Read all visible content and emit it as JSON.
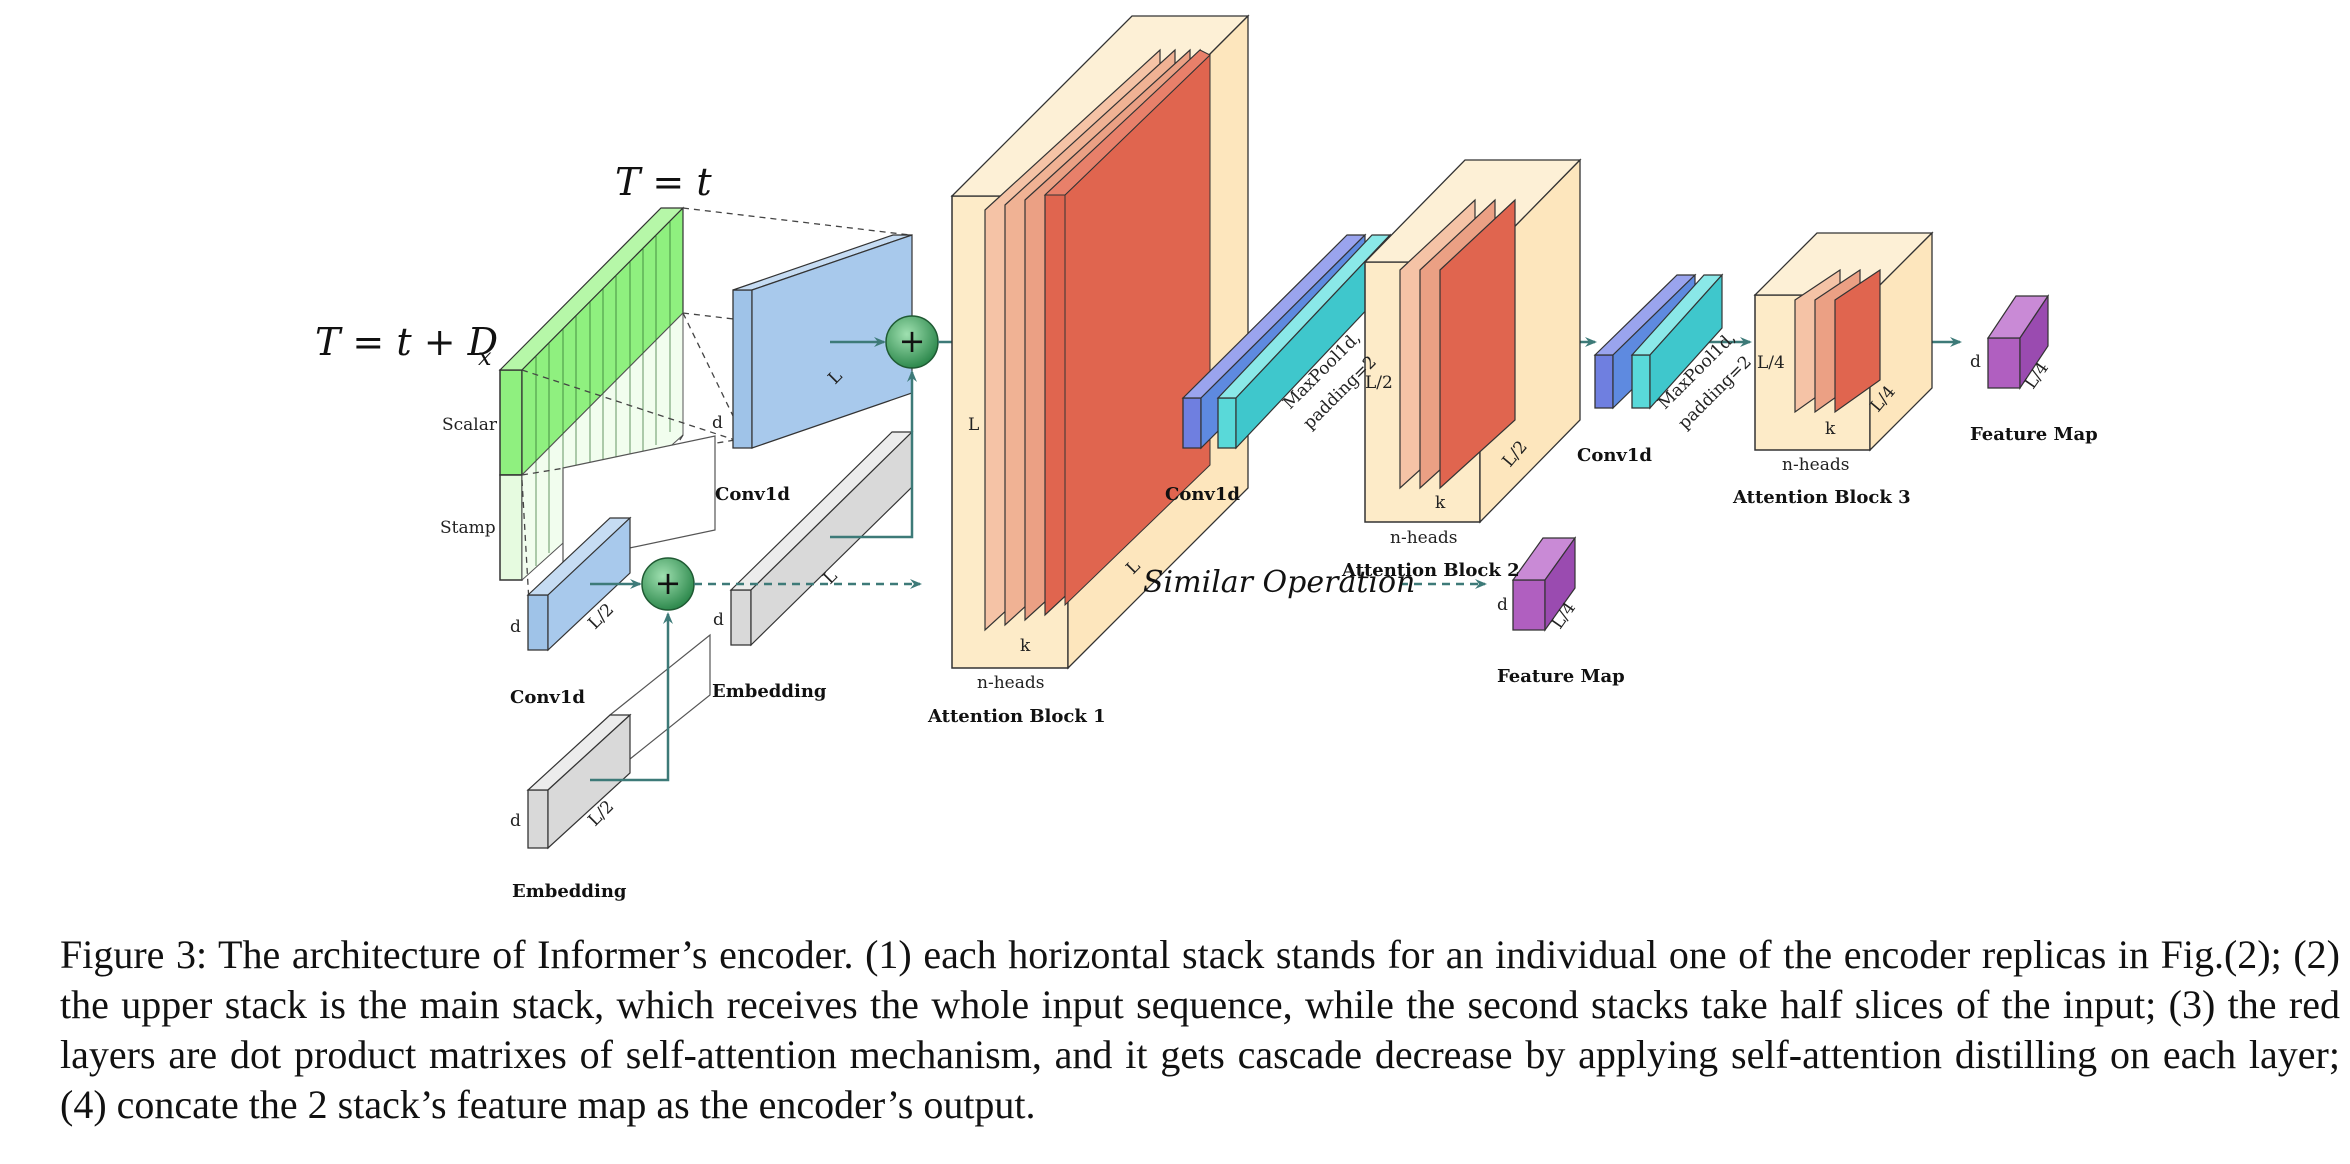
{
  "diagram": {
    "time_labels": {
      "top": "T = t",
      "left": "T = t + D",
      "left_sub": "x"
    },
    "input_labels": {
      "scalar": "Scalar",
      "stamp": "Stamp"
    },
    "dims": {
      "d": "d",
      "L": "L",
      "L2": "L/2",
      "L4": "L/4",
      "k": "k",
      "n_heads": "n-heads"
    },
    "maxpool": {
      "line1": "MaxPool1d,",
      "line2": "padding=2"
    },
    "block_labels": {
      "conv1d": "Conv1d",
      "embedding": "Embedding",
      "attention_block_1": "Attention Block 1",
      "attention_block_2": "Attention Block 2",
      "attention_block_3": "Attention Block 3",
      "feature_map": "Feature Map"
    },
    "similar_operation": "Similar Operation",
    "plus_symbol": "+",
    "colors": {
      "green_input": "#8ff07f",
      "conv_blue": "#9fc3e8",
      "deep_blue": "#6f7fe0",
      "cyan": "#59d9d9",
      "attention_box": "#fdebc8",
      "attention_red": "#e0654f",
      "feature_purple": "#b05fc0",
      "embedding_gray": "#d9d9d9",
      "plus_green": "#3d9e5e",
      "arrow_teal": "#3d7a78"
    }
  },
  "caption": "Figure 3: The architecture of Informer’s encoder. (1) each horizontal stack stands for an individual one of the encoder replicas in Fig.(2); (2) the upper stack is the main stack, which receives the whole input sequence, while the second stacks take half slices of the input; (3) the red layers are dot product matrixes of self-attention mechanism, and it gets cascade decrease by applying self-attention distilling on each layer; (4) concate the 2 stack’s feature map as the encoder’s output."
}
